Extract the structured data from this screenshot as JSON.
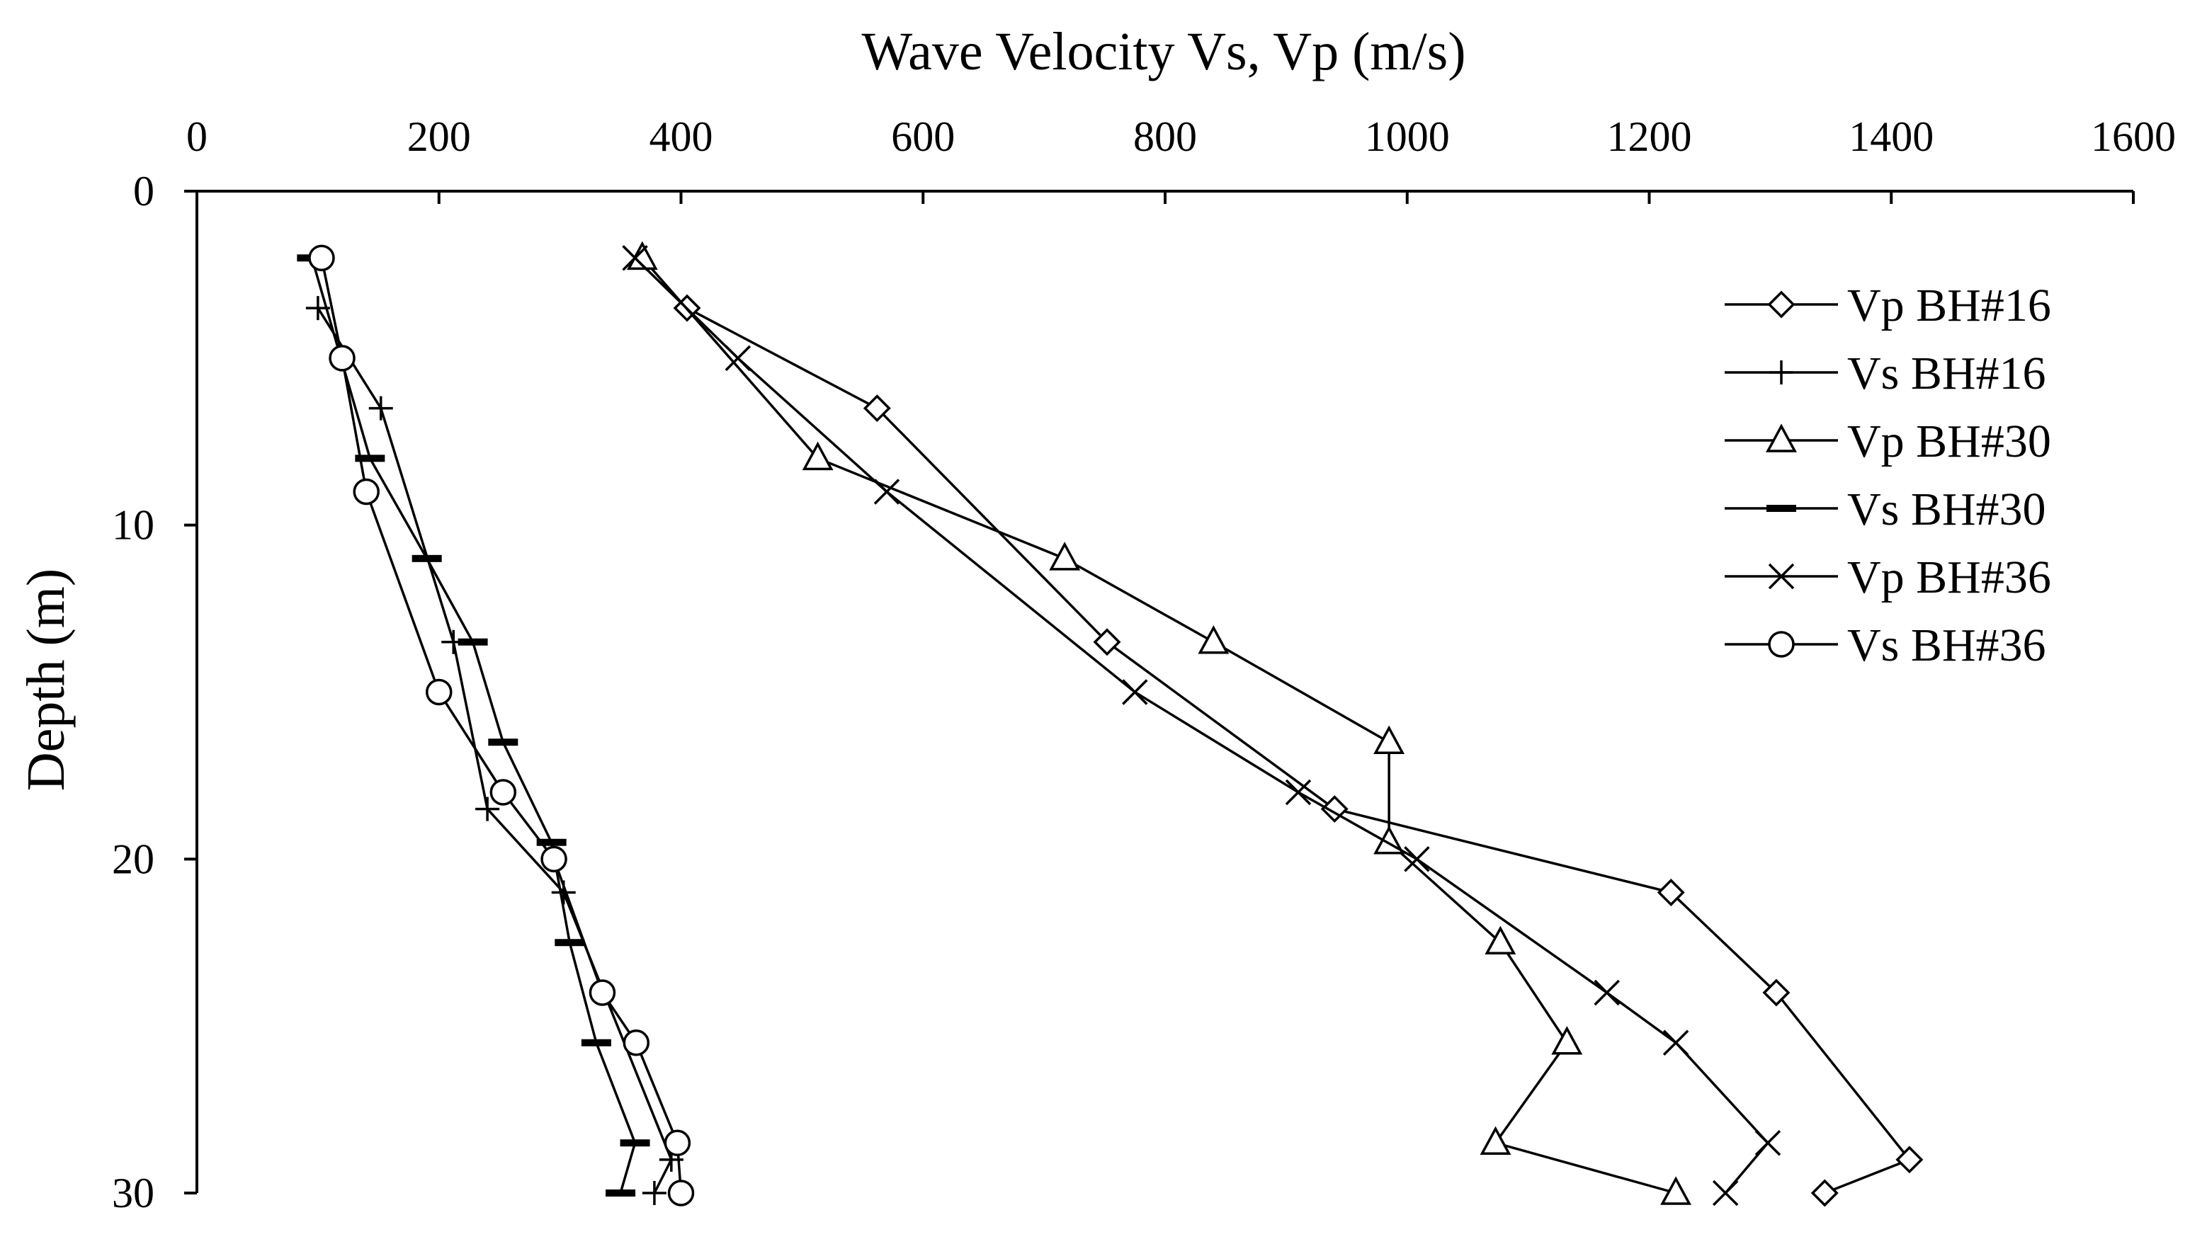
{
  "chart_data": {
    "type": "line",
    "title": "",
    "xlabel": "Wave Velocity Vs, Vp (m/s)",
    "ylabel": "Depth (m)",
    "xlim": [
      0,
      1600
    ],
    "ylim": [
      0,
      30
    ],
    "y_inverted": true,
    "x_axis_position": "top",
    "x_ticks": [
      0,
      200,
      400,
      600,
      800,
      1000,
      1200,
      1400,
      1600
    ],
    "y_ticks": [
      0,
      10,
      20,
      30
    ],
    "grid": false,
    "legend_position": "top-right",
    "series": [
      {
        "name": "Vp BH#16",
        "marker": "diamond",
        "points": [
          [
            405,
            3.5
          ],
          [
            562,
            6.5
          ],
          [
            752,
            13.5
          ],
          [
            940,
            18.5
          ],
          [
            1218,
            21
          ],
          [
            1305,
            24
          ],
          [
            1415,
            29
          ],
          [
            1345,
            30
          ]
        ]
      },
      {
        "name": "Vs BH#16",
        "marker": "plus",
        "points": [
          [
            100,
            3.5
          ],
          [
            152,
            6.5
          ],
          [
            212,
            13.5
          ],
          [
            240,
            18.5
          ],
          [
            303,
            21
          ],
          [
            392,
            29
          ],
          [
            378,
            30
          ]
        ]
      },
      {
        "name": "Vp BH#30",
        "marker": "triangle",
        "points": [
          [
            368,
            2
          ],
          [
            513,
            8
          ],
          [
            717,
            11
          ],
          [
            840,
            13.5
          ],
          [
            985,
            16.5
          ],
          [
            985,
            19.5
          ],
          [
            1077,
            22.5
          ],
          [
            1132,
            25.5
          ],
          [
            1073,
            28.5
          ],
          [
            1222,
            30
          ]
        ]
      },
      {
        "name": "Vs BH#30",
        "marker": "dash",
        "points": [
          [
            95,
            2
          ],
          [
            143,
            8
          ],
          [
            190,
            11
          ],
          [
            228,
            13.5
          ],
          [
            253,
            16.5
          ],
          [
            293,
            19.5
          ],
          [
            308,
            22.5
          ],
          [
            330,
            25.5
          ],
          [
            362,
            28.5
          ],
          [
            350,
            30
          ]
        ]
      },
      {
        "name": "Vp BH#36",
        "marker": "x",
        "points": [
          [
            362,
            2
          ],
          [
            447,
            5
          ],
          [
            570,
            9
          ],
          [
            775,
            15
          ],
          [
            910,
            18
          ],
          [
            1008,
            20
          ],
          [
            1165,
            24
          ],
          [
            1222,
            25.5
          ],
          [
            1298,
            28.5
          ],
          [
            1263,
            30
          ]
        ]
      },
      {
        "name": "Vs BH#36",
        "marker": "circle",
        "points": [
          [
            103,
            2
          ],
          [
            120,
            5
          ],
          [
            140,
            9
          ],
          [
            200,
            15
          ],
          [
            253,
            18
          ],
          [
            295,
            20
          ],
          [
            335,
            24
          ],
          [
            363,
            25.5
          ],
          [
            397,
            28.5
          ],
          [
            400,
            30
          ]
        ]
      }
    ]
  }
}
